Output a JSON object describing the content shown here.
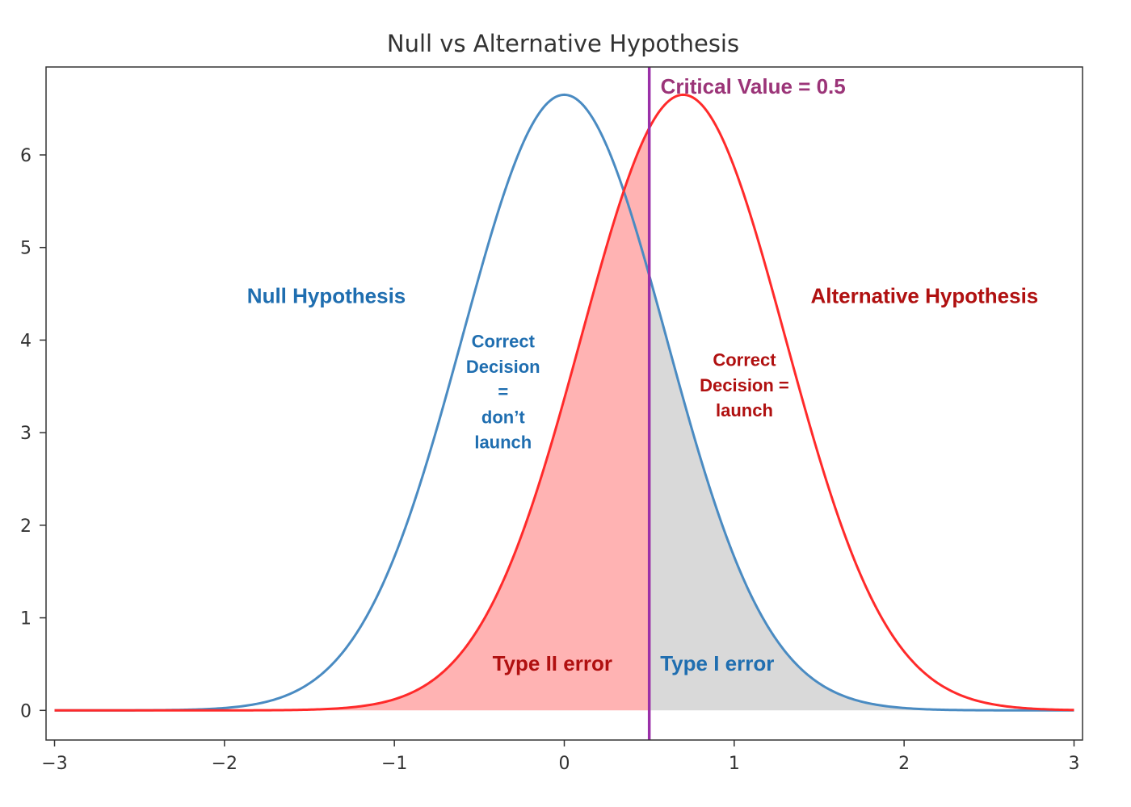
{
  "chart_data": {
    "type": "line",
    "title": "Null vs Alternative Hypothesis",
    "xlabel": "",
    "ylabel": "",
    "xlim": [
      -3.05,
      3.05
    ],
    "ylim": [
      -0.32,
      6.95
    ],
    "x_ticks": [
      -3,
      -2,
      -1,
      0,
      1,
      2,
      3
    ],
    "x_tick_labels": [
      "−3",
      "−2",
      "−1",
      "0",
      "1",
      "2",
      "3"
    ],
    "y_ticks": [
      0,
      1,
      2,
      3,
      4,
      5,
      6
    ],
    "y_tick_labels": [
      "0",
      "1",
      "2",
      "3",
      "4",
      "5",
      "6"
    ],
    "grid": false,
    "series": [
      {
        "name": "Null Hypothesis",
        "distribution": "normal",
        "mean": 0.0,
        "sd": 0.6,
        "scale": 10,
        "peak": 6.65,
        "x_range": [
          -3,
          3
        ],
        "color": "#4a8bc2"
      },
      {
        "name": "Alternative Hypothesis",
        "distribution": "normal",
        "mean": 0.7,
        "sd": 0.6,
        "scale": 10,
        "peak": 6.65,
        "x_range": [
          -3,
          3
        ],
        "color": "#ff2a2a"
      }
    ],
    "critical_value": {
      "x": 0.5,
      "label": "Critical Value = 0.5",
      "color": "#9b30a8"
    },
    "shaded_regions": [
      {
        "name": "Type II error",
        "under": "Alternative Hypothesis",
        "x_range": [
          -3,
          0.5
        ],
        "color": "#ffb3b3"
      },
      {
        "name": "Type I error",
        "under": "Null Hypothesis",
        "x_range": [
          0.5,
          3
        ],
        "color": "#d9d9d9"
      }
    ],
    "annotations": [
      {
        "name": "null-hypothesis-label",
        "lines": [
          "Null Hypothesis"
        ],
        "x": -1.4,
        "y": 4.4,
        "color": "#1f6eb0",
        "size": 26
      },
      {
        "name": "alternative-hypothesis-label",
        "lines": [
          "Alternative Hypothesis"
        ],
        "x": 2.12,
        "y": 4.4,
        "color": "#b01010",
        "size": 26
      },
      {
        "name": "correct-decision-dont-launch-label",
        "lines": [
          "Correct",
          "Decision",
          "=",
          "don’t",
          "launch"
        ],
        "x": -0.36,
        "y": 3.92,
        "color": "#1f6eb0",
        "size": 22
      },
      {
        "name": "correct-decision-launch-label",
        "lines": [
          "Correct",
          "Decision =",
          "launch"
        ],
        "x": 1.06,
        "y": 3.72,
        "color": "#b01010",
        "size": 22
      },
      {
        "name": "type-ii-error-label",
        "lines": [
          "Type II error"
        ],
        "x": -0.07,
        "y": 0.43,
        "color": "#b01010",
        "size": 26
      },
      {
        "name": "type-i-error-label",
        "lines": [
          "Type I error"
        ],
        "x": 0.9,
        "y": 0.43,
        "color": "#1f6eb0",
        "size": 26
      }
    ]
  }
}
